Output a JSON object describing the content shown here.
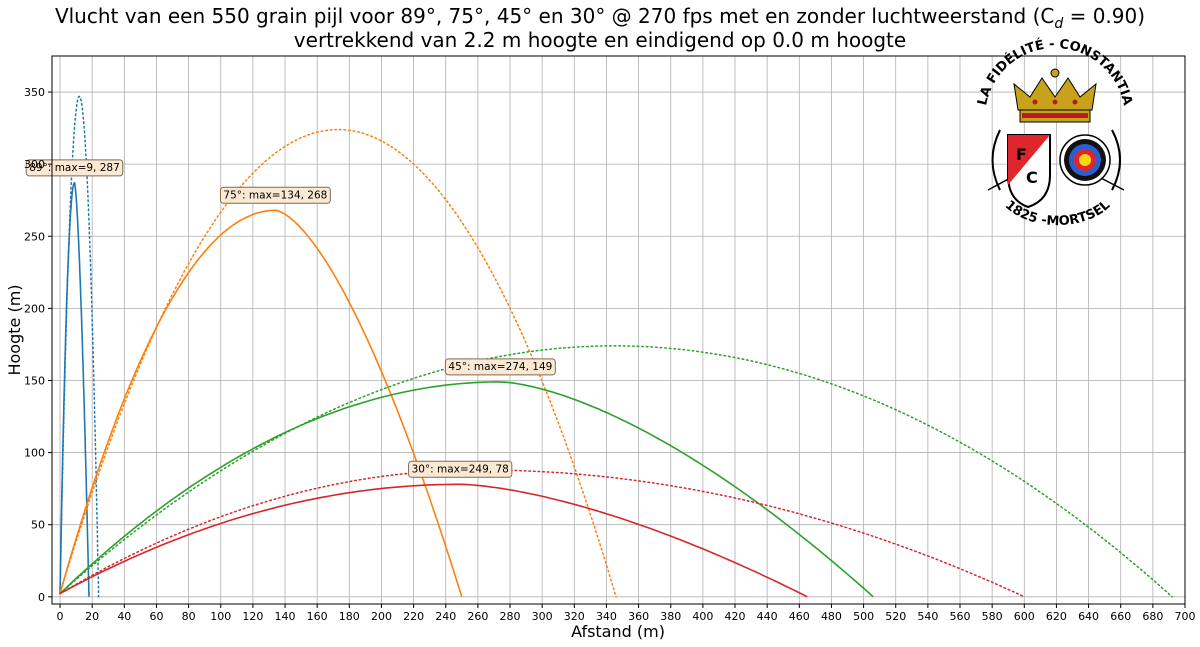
{
  "figure": {
    "title_line1": "Vlucht van een 550 grain pijl voor 89°, 75°, 45° en 30° @ 270 fps met en zonder luchtweerstand (C",
    "title_cd_sub": "d",
    "title_cd_value": " = 0.90)",
    "title_line2": "vertrekkend van 2.2 m hoogte en eindigend op 0.0 m hoogte"
  },
  "logo": {
    "top_text": "LA FIDÉLITÉ - CONSTANTIA",
    "bottom_text": "1825 -MORTSEL",
    "shield_letters": [
      "F",
      "C"
    ]
  },
  "chart_data": {
    "type": "line",
    "xlabel": "Afstand (m)",
    "ylabel": "Hoogte (m)",
    "xlim": [
      -5,
      700
    ],
    "ylim": [
      -5,
      375
    ],
    "xticks": [
      0,
      20,
      40,
      60,
      80,
      100,
      120,
      140,
      160,
      180,
      200,
      220,
      240,
      260,
      280,
      300,
      320,
      340,
      360,
      380,
      400,
      420,
      440,
      460,
      480,
      500,
      520,
      540,
      560,
      580,
      600,
      620,
      640,
      660,
      680,
      700
    ],
    "yticks": [
      0,
      50,
      100,
      150,
      200,
      250,
      300,
      350
    ],
    "grid": true,
    "launch_height": 2.2,
    "series": [
      {
        "angle": 89,
        "drag": true,
        "style": "solid",
        "color": "#1f77b4",
        "apex": [
          9,
          287
        ],
        "range": 18
      },
      {
        "angle": 89,
        "drag": false,
        "style": "dotted",
        "color": "#1f77b4",
        "apex": [
          12,
          347
        ],
        "range": 24
      },
      {
        "angle": 75,
        "drag": true,
        "style": "solid",
        "color": "#ff7f0e",
        "apex": [
          134,
          268
        ],
        "range": 250
      },
      {
        "angle": 75,
        "drag": false,
        "style": "dotted",
        "color": "#ff7f0e",
        "apex": [
          173,
          324
        ],
        "range": 346
      },
      {
        "angle": 45,
        "drag": true,
        "style": "solid",
        "color": "#2ca02c",
        "apex": [
          274,
          149
        ],
        "range": 506
      },
      {
        "angle": 45,
        "drag": false,
        "style": "dotted",
        "color": "#2ca02c",
        "apex": [
          345,
          174
        ],
        "range": 692
      },
      {
        "angle": 30,
        "drag": true,
        "style": "solid",
        "color": "#d62728",
        "apex": [
          249,
          78
        ],
        "range": 465
      },
      {
        "angle": 30,
        "drag": false,
        "style": "dotted",
        "color": "#d62728",
        "apex": [
          260,
          88
        ],
        "range": 600
      }
    ],
    "annotations": [
      {
        "text": "89°: max=9, 287",
        "x": 9,
        "y": 287
      },
      {
        "text": "75°: max=134, 268",
        "x": 134,
        "y": 268
      },
      {
        "text": "45°: max=274, 149",
        "x": 274,
        "y": 149
      },
      {
        "text": "30°: max=249, 78",
        "x": 249,
        "y": 78
      }
    ]
  }
}
